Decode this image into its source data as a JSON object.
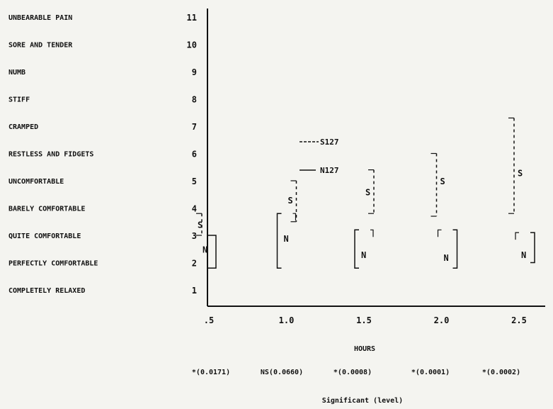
{
  "chart_data": {
    "type": "range",
    "xlabel": "HOURS",
    "x": [
      0.5,
      1.0,
      1.5,
      2.0,
      2.5
    ],
    "x_tick_labels": [
      ".5",
      "1.0",
      "1.5",
      "2.0",
      "2.5"
    ],
    "y_tick_labels": [
      "1",
      "2",
      "3",
      "4",
      "5",
      "6",
      "7",
      "8",
      "9",
      "10",
      "11"
    ],
    "ylim": [
      0,
      11
    ],
    "categories": [
      "COMPLETELY RELAXED",
      "PERFECTLY COMFORTABLE",
      "QUITE COMFORTABLE",
      "BARELY COMFORTABLE",
      "UNCOMFORTABLE",
      "RESTLESS AND FIDGETS",
      "CRAMPED",
      "STIFF",
      "NUMB",
      "SORE AND TENDER",
      "UNBEARABLE PAIN"
    ],
    "legend": [
      {
        "marker": "S",
        "label": "---S127",
        "style": "dashed"
      },
      {
        "marker": "N",
        "label": "— N127",
        "style": "solid"
      }
    ],
    "series": [
      {
        "name": "S127",
        "marker": "S",
        "style": "dashed",
        "ranges": [
          [
            3.0,
            3.8
          ],
          [
            3.5,
            5.0
          ],
          [
            3.8,
            5.4
          ],
          [
            3.7,
            6.0
          ],
          [
            3.8,
            7.3
          ]
        ],
        "values": [
          3.4,
          4.3,
          4.6,
          5.0,
          5.3
        ]
      },
      {
        "name": "N127",
        "marker": "N",
        "style": "solid",
        "ranges": [
          [
            1.8,
            3.0
          ],
          [
            1.8,
            3.8
          ],
          [
            1.8,
            3.2
          ],
          [
            1.8,
            3.2
          ],
          [
            2.0,
            3.1
          ]
        ],
        "values": [
          2.5,
          2.9,
          2.3,
          2.2,
          2.3
        ]
      }
    ],
    "significance_label": "Significant (level)",
    "significance": [
      "*(0.0171)",
      "NS(0.0660)",
      "*(0.0008)",
      "*(0.0001)",
      "*(0.0002)"
    ]
  }
}
